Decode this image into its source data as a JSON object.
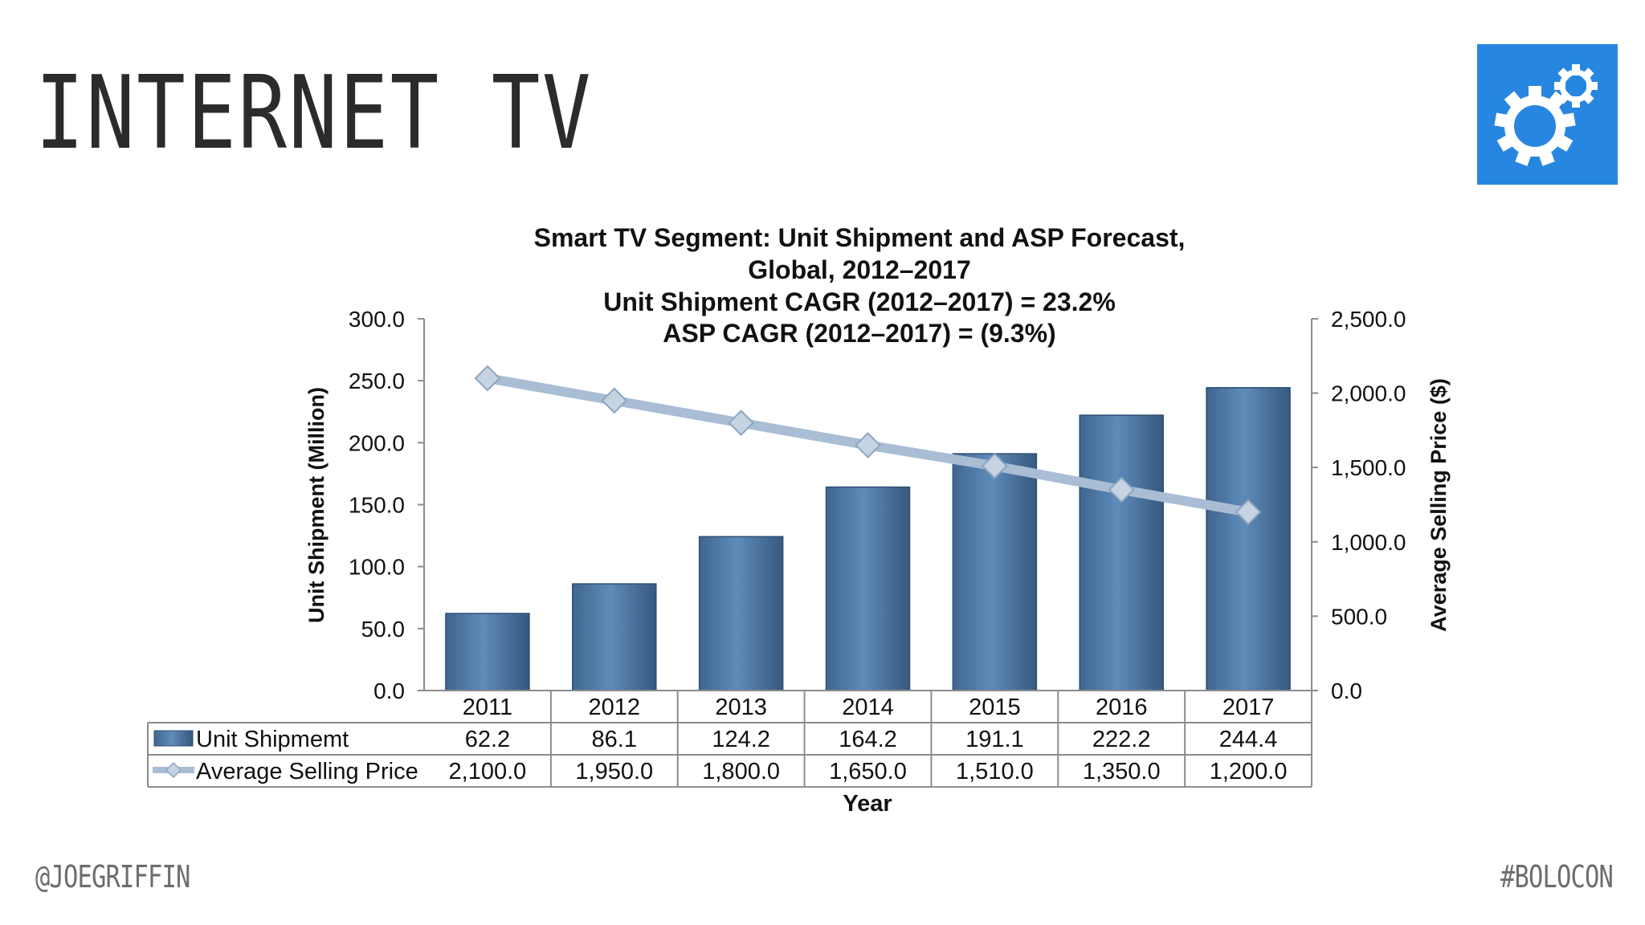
{
  "slide": {
    "title": "INTERNET TV",
    "footer_left": "@JOEGRIFFIN",
    "footer_right": "#BOLOCON",
    "logo_icon": "gears-icon",
    "accent_color": "#2787e0"
  },
  "chart_data": {
    "type": "bar",
    "title_lines": [
      "Smart TV Segment: Unit Shipment and ASP Forecast,",
      "Global, 2012–2017",
      "Unit Shipment CAGR (2012–2017) = 23.2%",
      "ASP CAGR (2012–2017) = (9.3%)"
    ],
    "categories": [
      "2011",
      "2012",
      "2013",
      "2014",
      "2015",
      "2016",
      "2017"
    ],
    "series": [
      {
        "name": "Unit Shipmemt",
        "kind": "bar",
        "axis": "left",
        "color": "#4a75a3",
        "values": [
          62.2,
          86.1,
          124.2,
          164.2,
          191.1,
          222.2,
          244.4
        ],
        "labels": [
          "62.2",
          "86.1",
          "124.2",
          "164.2",
          "191.1",
          "222.2",
          "244.4"
        ]
      },
      {
        "name": "Average Selling Price",
        "kind": "line",
        "axis": "right",
        "color": "#a9bdd4",
        "values": [
          2100.0,
          1950.0,
          1800.0,
          1650.0,
          1510.0,
          1350.0,
          1200.0
        ],
        "labels": [
          "2,100.0",
          "1,950.0",
          "1,800.0",
          "1,650.0",
          "1,510.0",
          "1,350.0",
          "1,200.0"
        ]
      }
    ],
    "y_left": {
      "label": "Unit Shipment (Million)",
      "ylim": [
        0,
        300
      ],
      "ticks": [
        0,
        50,
        100,
        150,
        200,
        250,
        300
      ],
      "tick_labels": [
        "0.0",
        "50.0",
        "100.0",
        "150.0",
        "200.0",
        "250.0",
        "300.0"
      ]
    },
    "y_right": {
      "label": "Average Selling Price ($)",
      "ylim": [
        0,
        2500
      ],
      "ticks": [
        0,
        500,
        1000,
        1500,
        2000,
        2500
      ],
      "tick_labels": [
        "0.0",
        "500.0",
        "1,000.0",
        "1,500.0",
        "2,000.0",
        "2,500.0"
      ]
    },
    "xlabel": "Year",
    "data_table": true,
    "grid": false
  }
}
